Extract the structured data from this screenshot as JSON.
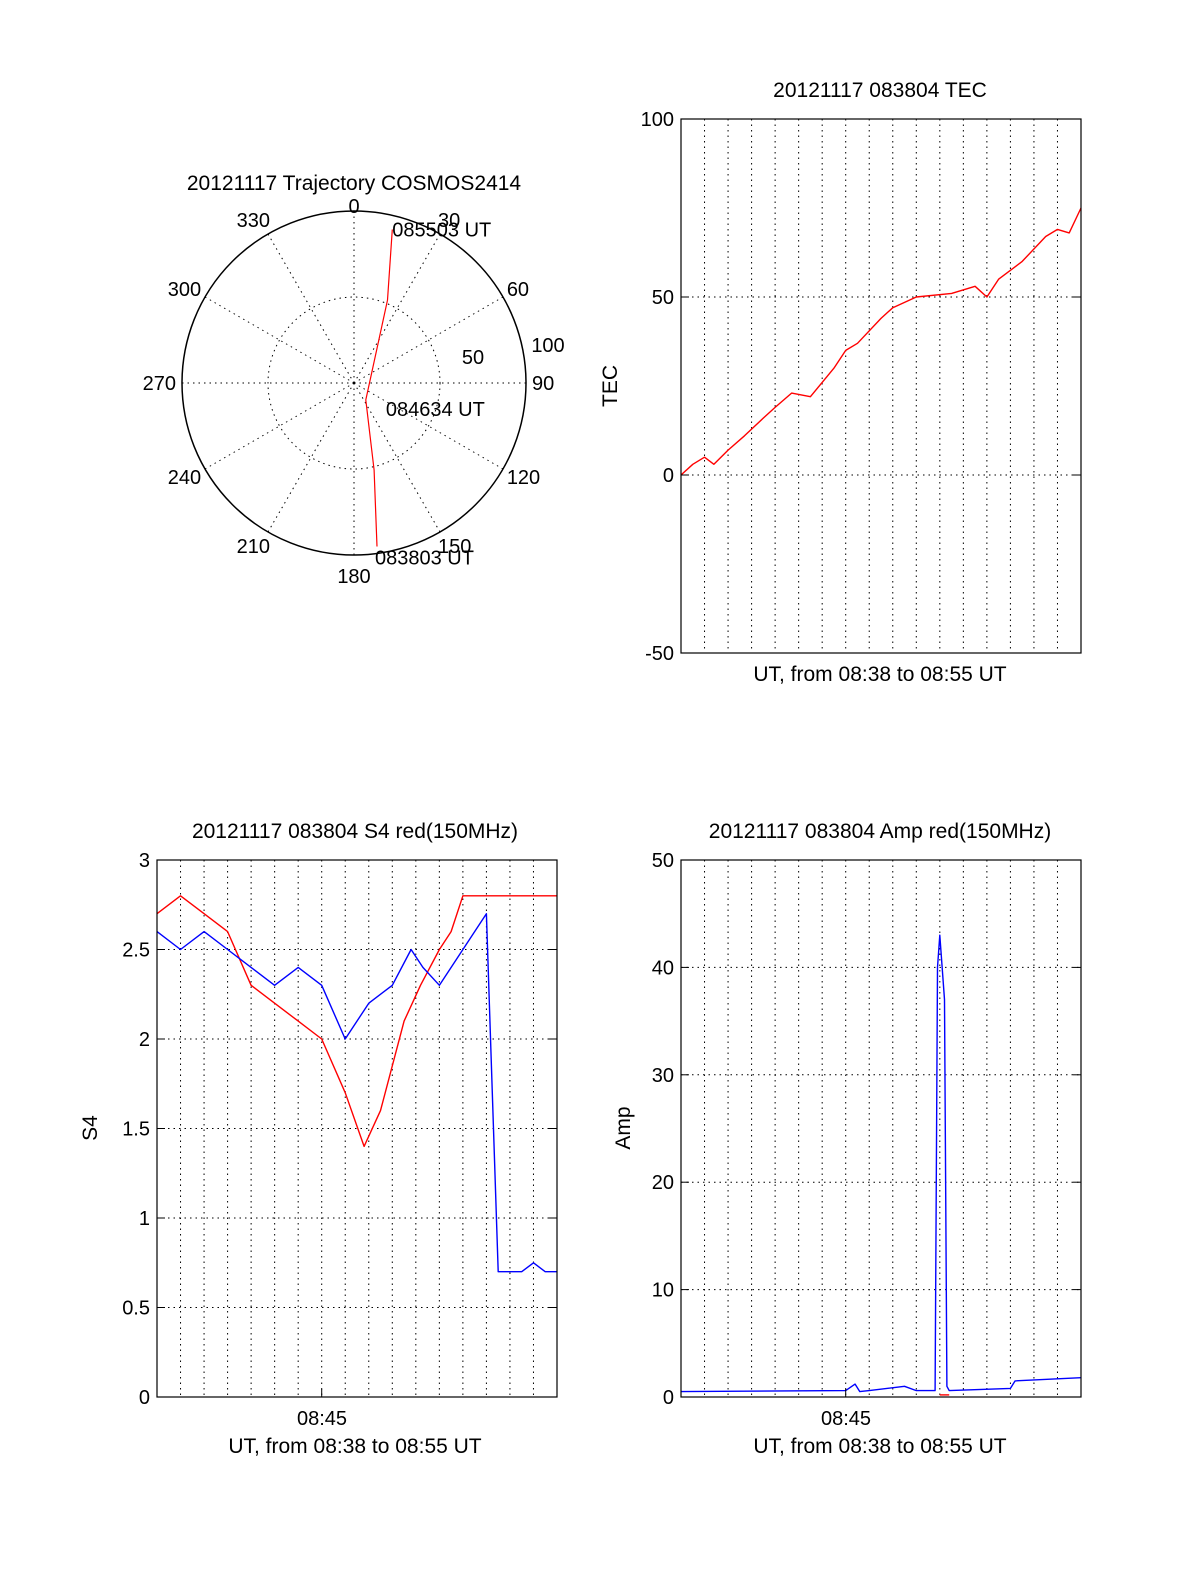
{
  "colors": {
    "red": "#ff0000",
    "blue": "#0000ff",
    "axis": "#000000",
    "grid": "#000000"
  },
  "chart_data": [
    {
      "id": "trajectory",
      "type": "polar",
      "title": "20121117 Trajectory COSMOS2414",
      "angle_labels": [
        "0",
        "30",
        "60",
        "90",
        "120",
        "150",
        "180",
        "210",
        "240",
        "270",
        "300",
        "330"
      ],
      "angles_deg": [
        0,
        30,
        60,
        90,
        120,
        150,
        180,
        210,
        240,
        270,
        300,
        330
      ],
      "radial_labels": [
        "50",
        "100"
      ],
      "radial_values": [
        50,
        100
      ],
      "rmax": 100,
      "series": [
        {
          "color": "red",
          "points": [
            {
              "az": 14,
              "r": 92,
              "label": "085503 UT"
            },
            {
              "az": 22,
              "r": 52,
              "label": ""
            },
            {
              "az": 145,
              "r": 12,
              "label": "084634 UT"
            },
            {
              "az": 167,
              "r": 52,
              "label": ""
            },
            {
              "az": 172,
              "r": 96,
              "label": "083803 UT"
            }
          ]
        }
      ]
    },
    {
      "id": "tec",
      "type": "line",
      "title": "20121117 083804 TEC",
      "xlabel": "UT, from 08:38 to 08:55 UT",
      "ylabel": "TEC",
      "xlim": [
        0,
        17
      ],
      "ylim": [
        -50,
        100
      ],
      "yticks": [
        "-50",
        "0",
        "50",
        "100"
      ],
      "ytick_values": [
        -50,
        0,
        50,
        100
      ],
      "x_grid_lines": 17,
      "series": [
        {
          "color": "red",
          "x": [
            0,
            0.5,
            1.0,
            1.4,
            2.0,
            2.7,
            3.5,
            4.0,
            4.7,
            5.5,
            6.5,
            7.0,
            7.5,
            8.5,
            9.0,
            10.0,
            11.5,
            12.5,
            13.0,
            13.5,
            14.5,
            15.5,
            16.0,
            16.5,
            17.0
          ],
          "y": [
            0,
            3,
            5,
            3,
            7,
            11,
            16,
            19,
            23,
            22,
            30,
            35,
            37,
            44,
            47,
            50,
            51,
            53,
            50,
            55,
            60,
            67,
            69,
            68,
            75
          ]
        }
      ]
    },
    {
      "id": "s4",
      "type": "line",
      "title": "20121117 083804 S4 red(150MHz)",
      "xlabel": "UT, from 08:38 to 08:55 UT",
      "ylabel": "S4",
      "xtick_label": "08:45",
      "xtick_value": 7,
      "xlim": [
        0,
        17
      ],
      "ylim": [
        0,
        3
      ],
      "yticks": [
        "0",
        "0.5",
        "1",
        "1.5",
        "2",
        "2.5",
        "3"
      ],
      "ytick_values": [
        0,
        0.5,
        1,
        1.5,
        2,
        2.5,
        3
      ],
      "x_grid_lines": 17,
      "series": [
        {
          "color": "red",
          "x": [
            0.0,
            1.0,
            2.0,
            3.0,
            4.0,
            5.0,
            6.0,
            7.0,
            8.0,
            8.8,
            9.5,
            10.5,
            11.2,
            12.0,
            12.5,
            13.0,
            14.0,
            15.0,
            16.0,
            17.0
          ],
          "y": [
            2.7,
            2.8,
            2.7,
            2.6,
            2.3,
            2.2,
            2.1,
            2.0,
            1.7,
            1.4,
            1.6,
            2.1,
            2.3,
            2.5,
            2.6,
            2.8,
            2.8,
            2.8,
            2.8,
            2.8
          ]
        },
        {
          "color": "blue",
          "x": [
            0.0,
            1.0,
            2.0,
            3.0,
            4.0,
            5.0,
            6.0,
            7.0,
            8.0,
            9.0,
            10.0,
            10.8,
            11.3,
            12.0,
            13.0,
            14.0,
            14.5,
            15.0,
            15.5,
            16.0,
            16.5,
            17.0
          ],
          "y": [
            2.6,
            2.5,
            2.6,
            2.5,
            2.4,
            2.3,
            2.4,
            2.3,
            2.0,
            2.2,
            2.3,
            2.5,
            2.4,
            2.3,
            2.5,
            2.7,
            0.7,
            0.7,
            0.7,
            0.75,
            0.7,
            0.7
          ]
        }
      ]
    },
    {
      "id": "amp",
      "type": "line",
      "title": "20121117 083804 Amp red(150MHz)",
      "xlabel": "UT, from 08:38 to 08:55 UT",
      "ylabel": "Amp",
      "xtick_label": "08:45",
      "xtick_value": 7,
      "xlim": [
        0,
        17
      ],
      "ylim": [
        0,
        50
      ],
      "yticks": [
        "0",
        "10",
        "20",
        "30",
        "40",
        "50"
      ],
      "ytick_values": [
        0,
        10,
        20,
        30,
        40,
        50
      ],
      "x_grid_lines": 17,
      "series": [
        {
          "color": "blue",
          "x": [
            0,
            7.0,
            7.4,
            7.6,
            8.0,
            9.5,
            10.0,
            10.8,
            10.9,
            11.0,
            11.2,
            11.3,
            11.4,
            14.0,
            14.2,
            17.0
          ],
          "y": [
            0.5,
            0.6,
            1.2,
            0.5,
            0.6,
            1.0,
            0.6,
            0.6,
            40,
            43,
            37,
            1.0,
            0.6,
            0.8,
            1.5,
            1.8
          ]
        },
        {
          "color": "red",
          "x": [
            11.0,
            11.4
          ],
          "y": [
            0.2,
            0.2
          ]
        }
      ]
    }
  ]
}
